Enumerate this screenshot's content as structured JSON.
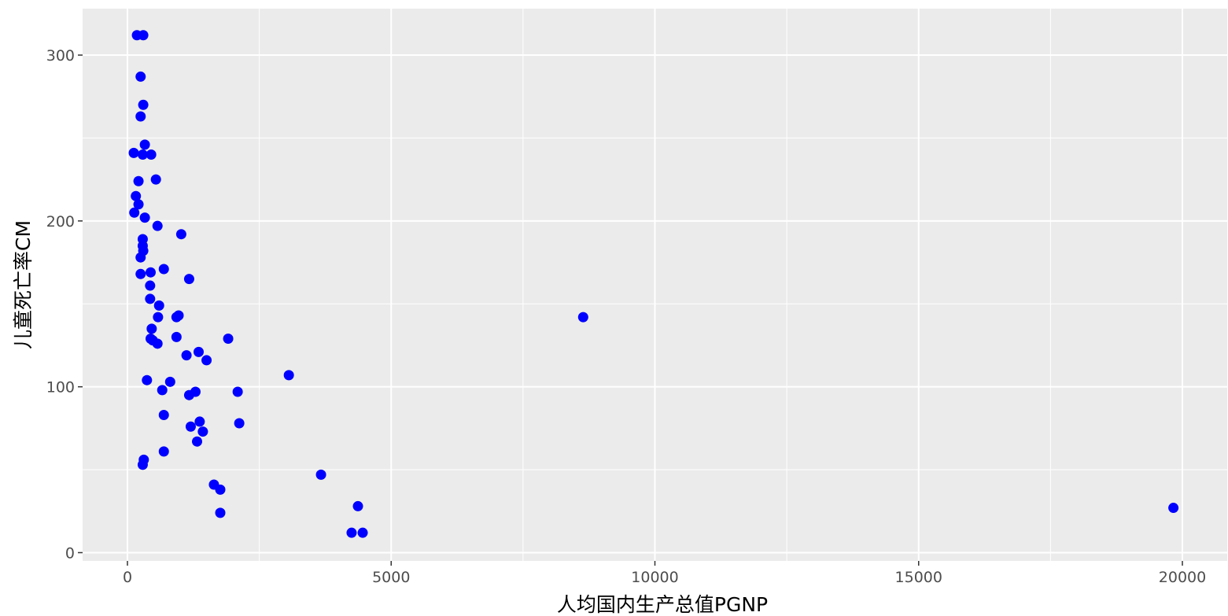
{
  "chart_data": {
    "type": "scatter",
    "title": "",
    "xlabel": "人均国内生产总值PGNP",
    "ylabel": "儿童死亡率CM",
    "xlim": [
      -850,
      20850
    ],
    "ylim": [
      -5,
      328
    ],
    "x_ticks": [
      0,
      5000,
      10000,
      15000,
      20000
    ],
    "x_tick_labels": [
      "0",
      "5000",
      "10000",
      "15000",
      "20000"
    ],
    "y_ticks": [
      0,
      100,
      200,
      300
    ],
    "y_tick_labels": [
      "0",
      "100",
      "200",
      "300"
    ],
    "grid": true,
    "legend": "none",
    "colors": {
      "point": "#0000ff",
      "panel": "#ebebeb",
      "grid": "#ffffff"
    },
    "points": [
      {
        "x": 180,
        "y": 312
      },
      {
        "x": 300,
        "y": 312
      },
      {
        "x": 250,
        "y": 287
      },
      {
        "x": 300,
        "y": 270
      },
      {
        "x": 250,
        "y": 263
      },
      {
        "x": 330,
        "y": 246
      },
      {
        "x": 120,
        "y": 241
      },
      {
        "x": 290,
        "y": 240
      },
      {
        "x": 450,
        "y": 240
      },
      {
        "x": 210,
        "y": 224
      },
      {
        "x": 540,
        "y": 225
      },
      {
        "x": 160,
        "y": 215
      },
      {
        "x": 210,
        "y": 210
      },
      {
        "x": 130,
        "y": 205
      },
      {
        "x": 330,
        "y": 202
      },
      {
        "x": 570,
        "y": 197
      },
      {
        "x": 1020,
        "y": 192
      },
      {
        "x": 290,
        "y": 189
      },
      {
        "x": 290,
        "y": 185
      },
      {
        "x": 300,
        "y": 182
      },
      {
        "x": 250,
        "y": 178
      },
      {
        "x": 690,
        "y": 171
      },
      {
        "x": 250,
        "y": 168
      },
      {
        "x": 440,
        "y": 169
      },
      {
        "x": 1170,
        "y": 165
      },
      {
        "x": 430,
        "y": 161
      },
      {
        "x": 430,
        "y": 153
      },
      {
        "x": 600,
        "y": 149
      },
      {
        "x": 930,
        "y": 142
      },
      {
        "x": 970,
        "y": 143
      },
      {
        "x": 580,
        "y": 142
      },
      {
        "x": 8640,
        "y": 142
      },
      {
        "x": 460,
        "y": 135
      },
      {
        "x": 930,
        "y": 130
      },
      {
        "x": 440,
        "y": 129
      },
      {
        "x": 480,
        "y": 128
      },
      {
        "x": 1910,
        "y": 129
      },
      {
        "x": 570,
        "y": 126
      },
      {
        "x": 1350,
        "y": 121
      },
      {
        "x": 1120,
        "y": 119
      },
      {
        "x": 1500,
        "y": 116
      },
      {
        "x": 3060,
        "y": 107
      },
      {
        "x": 370,
        "y": 104
      },
      {
        "x": 810,
        "y": 103
      },
      {
        "x": 660,
        "y": 98
      },
      {
        "x": 1290,
        "y": 97
      },
      {
        "x": 2090,
        "y": 97
      },
      {
        "x": 1170,
        "y": 95
      },
      {
        "x": 690,
        "y": 83
      },
      {
        "x": 1370,
        "y": 79
      },
      {
        "x": 2120,
        "y": 78
      },
      {
        "x": 1200,
        "y": 76
      },
      {
        "x": 1430,
        "y": 73
      },
      {
        "x": 1320,
        "y": 67
      },
      {
        "x": 690,
        "y": 61
      },
      {
        "x": 310,
        "y": 56
      },
      {
        "x": 290,
        "y": 53
      },
      {
        "x": 3670,
        "y": 47
      },
      {
        "x": 1640,
        "y": 41
      },
      {
        "x": 1760,
        "y": 38
      },
      {
        "x": 4370,
        "y": 28
      },
      {
        "x": 19830,
        "y": 27
      },
      {
        "x": 1760,
        "y": 24
      },
      {
        "x": 4250,
        "y": 12
      },
      {
        "x": 4460,
        "y": 12
      }
    ]
  }
}
